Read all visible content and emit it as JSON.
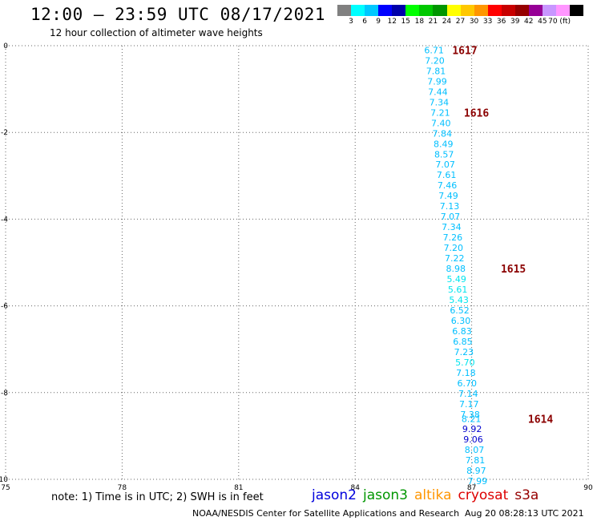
{
  "header": {
    "title": "12:00 – 23:59 UTC 08/17/2021",
    "subtitle": "12 hour collection of altimeter wave heights"
  },
  "color_scale": {
    "colors": [
      "#808080",
      "#00ffff",
      "#00c8ff",
      "#0000ff",
      "#0000aa",
      "#00ff00",
      "#00c800",
      "#009600",
      "#ffff00",
      "#ffc800",
      "#ff9600",
      "#ff0000",
      "#c80000",
      "#960000",
      "#960096",
      "#c896ff",
      "#ff96ff",
      "#000000"
    ],
    "labels": [
      "3",
      "6",
      "9",
      "12",
      "15",
      "18",
      "21",
      "24",
      "27",
      "30",
      "33",
      "36",
      "39",
      "42",
      "45",
      "70 (ft)"
    ]
  },
  "chart_data": {
    "type": "scatter",
    "xlim": [
      75,
      90
    ],
    "ylim": [
      -10,
      0
    ],
    "x_ticks": [
      "75",
      "78",
      "81",
      "84",
      "87",
      "90"
    ],
    "y_ticks": [
      "0",
      "-2",
      "-4",
      "-6",
      "-8",
      "-10"
    ],
    "grid": true,
    "points": [
      {
        "x": 86.03,
        "y": -0.1,
        "label": "6.71",
        "color": "#00bfff"
      },
      {
        "x": 86.05,
        "y": -0.34,
        "label": "7.20",
        "color": "#00bfff"
      },
      {
        "x": 86.08,
        "y": -0.58,
        "label": "7.81",
        "color": "#00bfff"
      },
      {
        "x": 86.11,
        "y": -0.82,
        "label": "7.99",
        "color": "#00bfff"
      },
      {
        "x": 86.13,
        "y": -1.06,
        "label": "7.44",
        "color": "#00bfff"
      },
      {
        "x": 86.16,
        "y": -1.3,
        "label": "7.34",
        "color": "#00bfff"
      },
      {
        "x": 86.19,
        "y": -1.54,
        "label": "7.21",
        "color": "#00bfff"
      },
      {
        "x": 86.21,
        "y": -1.78,
        "label": "7.40",
        "color": "#00bfff"
      },
      {
        "x": 86.24,
        "y": -2.02,
        "label": "7.84",
        "color": "#00bfff"
      },
      {
        "x": 86.27,
        "y": -2.26,
        "label": "8.49",
        "color": "#00bfff"
      },
      {
        "x": 86.29,
        "y": -2.5,
        "label": "8.57",
        "color": "#00bfff"
      },
      {
        "x": 86.32,
        "y": -2.74,
        "label": "7.07",
        "color": "#00bfff"
      },
      {
        "x": 86.35,
        "y": -2.98,
        "label": "7.61",
        "color": "#00bfff"
      },
      {
        "x": 86.37,
        "y": -3.22,
        "label": "7.46",
        "color": "#00bfff"
      },
      {
        "x": 86.4,
        "y": -3.46,
        "label": "7.49",
        "color": "#00bfff"
      },
      {
        "x": 86.43,
        "y": -3.7,
        "label": "7.13",
        "color": "#00bfff"
      },
      {
        "x": 86.45,
        "y": -3.94,
        "label": "7.07",
        "color": "#00bfff"
      },
      {
        "x": 86.48,
        "y": -4.18,
        "label": "7.34",
        "color": "#00bfff"
      },
      {
        "x": 86.51,
        "y": -4.42,
        "label": "7.26",
        "color": "#00bfff"
      },
      {
        "x": 86.53,
        "y": -4.66,
        "label": "7.20",
        "color": "#00bfff"
      },
      {
        "x": 86.56,
        "y": -4.9,
        "label": "7.22",
        "color": "#00bfff"
      },
      {
        "x": 86.59,
        "y": -5.14,
        "label": "8.98",
        "color": "#00bfff"
      },
      {
        "x": 86.61,
        "y": -5.38,
        "label": "5.49",
        "color": "#00e5ee"
      },
      {
        "x": 86.64,
        "y": -5.62,
        "label": "5.61",
        "color": "#00e5ee"
      },
      {
        "x": 86.67,
        "y": -5.86,
        "label": "5.43",
        "color": "#00e5ee"
      },
      {
        "x": 86.69,
        "y": -6.1,
        "label": "6.52",
        "color": "#00bfff"
      },
      {
        "x": 86.72,
        "y": -6.34,
        "label": "6.30",
        "color": "#00bfff"
      },
      {
        "x": 86.75,
        "y": -6.58,
        "label": "6.83",
        "color": "#00bfff"
      },
      {
        "x": 86.77,
        "y": -6.82,
        "label": "6.85",
        "color": "#00bfff"
      },
      {
        "x": 86.8,
        "y": -7.06,
        "label": "7.23",
        "color": "#00bfff"
      },
      {
        "x": 86.83,
        "y": -7.3,
        "label": "5.70",
        "color": "#00e5ee"
      },
      {
        "x": 86.85,
        "y": -7.54,
        "label": "7.18",
        "color": "#00bfff"
      },
      {
        "x": 86.88,
        "y": -7.78,
        "label": "6.70",
        "color": "#00bfff"
      },
      {
        "x": 86.91,
        "y": -8.02,
        "label": "7.14",
        "color": "#00bfff"
      },
      {
        "x": 86.93,
        "y": -8.26,
        "label": "7.17",
        "color": "#00bfff"
      },
      {
        "x": 86.96,
        "y": -8.5,
        "label": "7.38",
        "color": "#00bfff"
      },
      {
        "x": 86.99,
        "y": -8.6,
        "label": "8.21",
        "color": "#00bfff"
      },
      {
        "x": 87.01,
        "y": -8.84,
        "label": "9.92",
        "color": "#0000cd"
      },
      {
        "x": 87.04,
        "y": -9.08,
        "label": "9.06",
        "color": "#0000cd"
      },
      {
        "x": 87.07,
        "y": -9.32,
        "label": "8.07",
        "color": "#00bfff"
      },
      {
        "x": 87.09,
        "y": -9.56,
        "label": "7.81",
        "color": "#00bfff"
      },
      {
        "x": 87.12,
        "y": -9.8,
        "label": "8.97",
        "color": "#00bfff"
      },
      {
        "x": 87.15,
        "y": -10.04,
        "label": "7.99",
        "color": "#00bfff"
      }
    ],
    "annotations": [
      {
        "x": 86.5,
        "y": -0.1,
        "text": "1617"
      },
      {
        "x": 86.8,
        "y": -1.54,
        "text": "1616"
      },
      {
        "x": 87.75,
        "y": -5.14,
        "text": "1615"
      },
      {
        "x": 88.45,
        "y": -8.6,
        "text": "1614"
      }
    ],
    "annotation_color": "#8b0000"
  },
  "footer": {
    "note": "note:  1) Time is in UTC;  2) SWH is in feet",
    "credit": "NOAA/NESDIS Center for Satellite Applications and Research",
    "timestamp": "Aug 20 08:28:13 UTC 2021"
  },
  "legend": {
    "items": [
      {
        "label": "jason2",
        "color": "#0000dd"
      },
      {
        "label": "jason3",
        "color": "#009600"
      },
      {
        "label": "altika",
        "color": "#ff9600"
      },
      {
        "label": "cryosat",
        "color": "#dd0000"
      },
      {
        "label": "s3a",
        "color": "#960000"
      }
    ]
  }
}
